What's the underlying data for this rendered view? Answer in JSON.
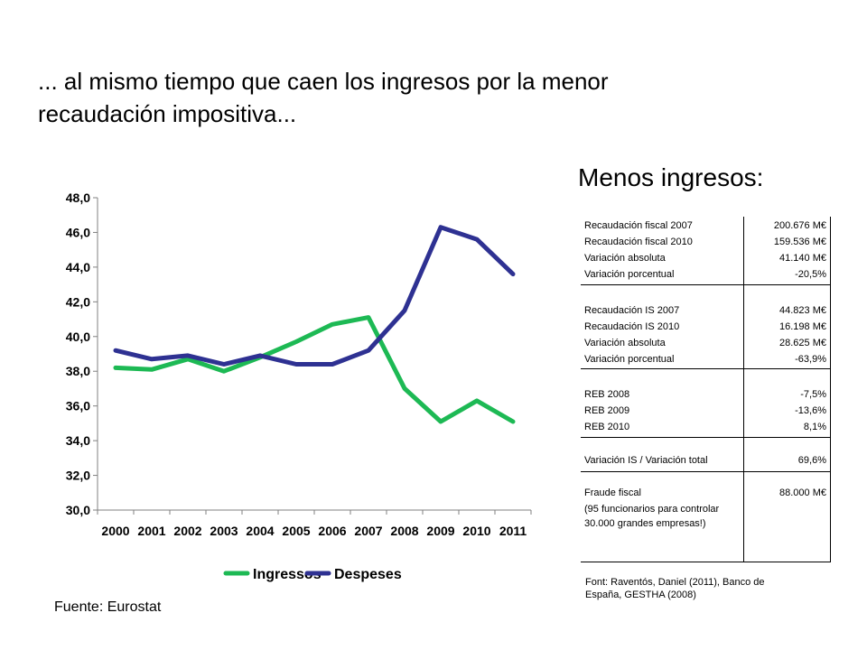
{
  "slide": {
    "title": "... al mismo tiempo que caen los ingresos por la menor recaudación impositiva...",
    "side_heading": "Menos ingresos:",
    "source_left": "Fuente: Eurostat",
    "source_right": "Font: Raventós, Daniel (2011), Banco de España, GESTHA (2008)"
  },
  "chart_data": {
    "type": "line",
    "title": "",
    "xlabel": "",
    "ylabel": "",
    "x": [
      "2000",
      "2001",
      "2002",
      "2003",
      "2004",
      "2005",
      "2006",
      "2007",
      "2008",
      "2009",
      "2010",
      "2011"
    ],
    "ylim": [
      30,
      48
    ],
    "yticks": [
      "30,0",
      "32,0",
      "34,0",
      "36,0",
      "38,0",
      "40,0",
      "42,0",
      "44,0",
      "46,0",
      "48,0"
    ],
    "grid": false,
    "legend_position": "bottom",
    "series": [
      {
        "name": "Ingressos",
        "color": "#1db954",
        "values": [
          38.2,
          38.1,
          38.7,
          38.0,
          38.8,
          39.7,
          40.7,
          41.1,
          37.0,
          35.1,
          36.3,
          35.1
        ]
      },
      {
        "name": "Despeses",
        "color": "#2e3192",
        "values": [
          39.2,
          38.7,
          38.9,
          38.4,
          38.9,
          38.4,
          38.4,
          39.2,
          41.5,
          46.3,
          45.6,
          43.6
        ]
      }
    ]
  },
  "table": {
    "groups": [
      {
        "rows": [
          {
            "label": "Recaudación fiscal 2007",
            "value": "200.676 M€"
          },
          {
            "label": "Recaudación fiscal 2010",
            "value": "159.536 M€"
          },
          {
            "label": "Variación absoluta",
            "value": "41.140 M€"
          },
          {
            "label": "Variación porcentual",
            "value": "-20,5%"
          }
        ]
      },
      {
        "rows": [
          {
            "label": "Recaudación IS 2007",
            "value": "44.823 M€"
          },
          {
            "label": "Recaudación IS 2010",
            "value": "16.198 M€"
          },
          {
            "label": "Variación absoluta",
            "value": "28.625 M€"
          },
          {
            "label": "Variación porcentual",
            "value": "-63,9%"
          }
        ]
      },
      {
        "rows": [
          {
            "label": "REB 2008",
            "value": "-7,5%"
          },
          {
            "label": "REB 2009",
            "value": "-13,6%"
          },
          {
            "label": "REB 2010",
            "value": "8,1%"
          }
        ]
      },
      {
        "rows": [
          {
            "label": "Variación IS / Variación total",
            "value": "69,6%"
          }
        ]
      },
      {
        "rows": [
          {
            "label": "Fraude fiscal",
            "value": "88.000 M€"
          }
        ],
        "note": "(95 funcionarios para controlar 30.000 grandes empresas!)"
      }
    ]
  }
}
